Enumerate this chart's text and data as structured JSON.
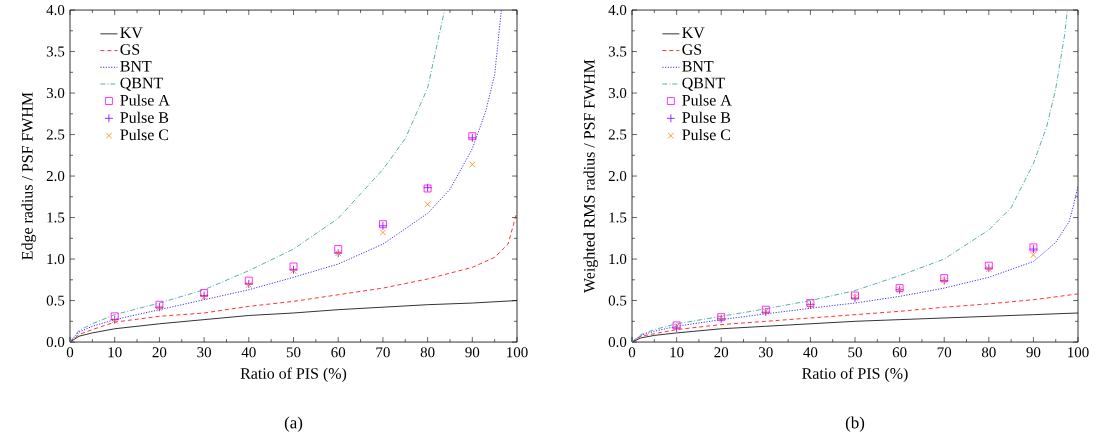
{
  "chart_data": [
    {
      "type": "line",
      "xlabel": "Ratio of PIS (%)",
      "ylabel": "Edge radius / PSF FWHM",
      "annotations": [
        "(a)"
      ],
      "xlim": [
        0,
        100
      ],
      "ylim": [
        0,
        4
      ],
      "xticks": [
        0,
        10,
        20,
        30,
        40,
        50,
        60,
        70,
        80,
        90,
        100
      ],
      "yticks": [
        {
          "value": 0,
          "label": "0.0"
        },
        {
          "value": 0.5,
          "label": "0.5"
        },
        {
          "value": 1,
          "label": "1.0"
        },
        {
          "value": 1.5,
          "label": "1.5"
        },
        {
          "value": 2,
          "label": "2.0"
        },
        {
          "value": 2.5,
          "label": "2.5"
        },
        {
          "value": 3,
          "label": "3.0"
        },
        {
          "value": 3.5,
          "label": "3.5"
        },
        {
          "value": 4,
          "label": "4.0"
        }
      ],
      "grid": false,
      "legend": "top left",
      "series": [
        {
          "name": "KV",
          "color": "#000000",
          "line_style": "solid",
          "marker": "none",
          "x": [
            0,
            2,
            5,
            10,
            20,
            30,
            40,
            50,
            60,
            70,
            80,
            90,
            100
          ],
          "values": [
            0,
            0.07,
            0.11,
            0.16,
            0.22,
            0.27,
            0.32,
            0.35,
            0.39,
            0.42,
            0.45,
            0.47,
            0.5
          ]
        },
        {
          "name": "GS",
          "color": "#ff0000",
          "line_style": "dashed",
          "marker": "none",
          "x": [
            0,
            2,
            5,
            10,
            20,
            30,
            40,
            50,
            60,
            70,
            80,
            90,
            95,
            98,
            100
          ],
          "values": [
            0,
            0.09,
            0.15,
            0.24,
            0.31,
            0.35,
            0.43,
            0.49,
            0.57,
            0.65,
            0.76,
            0.9,
            1.02,
            1.18,
            1.57
          ]
        },
        {
          "name": "BNT",
          "color": "#0000ff",
          "line_style": "dotted",
          "marker": "none",
          "x": [
            0,
            2,
            5,
            10,
            20,
            30,
            40,
            50,
            60,
            70,
            80,
            85,
            90,
            93,
            95,
            96.5
          ],
          "values": [
            0,
            0.12,
            0.19,
            0.27,
            0.39,
            0.51,
            0.63,
            0.78,
            0.94,
            1.18,
            1.55,
            1.84,
            2.33,
            2.78,
            3.22,
            4.0
          ]
        },
        {
          "name": "QBNT",
          "color": "#339999",
          "line_style": "dashdot",
          "marker": "none",
          "x": [
            0,
            2,
            5,
            10,
            20,
            30,
            40,
            50,
            60,
            70,
            75,
            80,
            83.8
          ],
          "values": [
            0,
            0.14,
            0.22,
            0.33,
            0.47,
            0.63,
            0.86,
            1.12,
            1.49,
            2.08,
            2.45,
            3.06,
            4.0
          ]
        },
        {
          "name": "Pulse A",
          "type": "scatter",
          "color": "#ff00ff",
          "marker": "square",
          "x": [
            10,
            20,
            30,
            40,
            50,
            60,
            70,
            80,
            90
          ],
          "values": [
            0.31,
            0.45,
            0.59,
            0.74,
            0.91,
            1.12,
            1.42,
            1.85,
            2.48
          ]
        },
        {
          "name": "Pulse B",
          "type": "scatter",
          "color": "#8000ff",
          "marker": "plus",
          "x": [
            10,
            20,
            30,
            40,
            50,
            60,
            70,
            80,
            90
          ],
          "values": [
            0.27,
            0.42,
            0.56,
            0.7,
            0.87,
            1.07,
            1.4,
            1.86,
            2.46
          ]
        },
        {
          "name": "Pulse C",
          "type": "scatter",
          "color": "#ff8000",
          "marker": "cross",
          "x": [
            10,
            20,
            30,
            40,
            50,
            60,
            70,
            80,
            90
          ],
          "values": [
            0.26,
            0.41,
            0.54,
            0.69,
            0.86,
            1.07,
            1.32,
            1.66,
            2.14
          ]
        }
      ]
    },
    {
      "type": "line",
      "xlabel": "Ratio of PIS (%)",
      "ylabel": "Weighted RMS radius / PSF FWHM",
      "annotations": [
        "(b)"
      ],
      "xlim": [
        0,
        100
      ],
      "ylim": [
        0,
        4
      ],
      "xticks": [
        0,
        10,
        20,
        30,
        40,
        50,
        60,
        70,
        80,
        90,
        100
      ],
      "yticks": [
        {
          "value": 0,
          "label": "0.0"
        },
        {
          "value": 0.5,
          "label": "0.5"
        },
        {
          "value": 1,
          "label": "1.0"
        },
        {
          "value": 1.5,
          "label": "1.5"
        },
        {
          "value": 2,
          "label": "2.0"
        },
        {
          "value": 2.5,
          "label": "2.5"
        },
        {
          "value": 3,
          "label": "3.0"
        },
        {
          "value": 3.5,
          "label": "3.5"
        },
        {
          "value": 4,
          "label": "4.0"
        }
      ],
      "grid": false,
      "legend": "top left",
      "series": [
        {
          "name": "KV",
          "color": "#000000",
          "line_style": "solid",
          "marker": "none",
          "x": [
            0,
            2,
            5,
            10,
            20,
            30,
            40,
            50,
            60,
            70,
            80,
            90,
            100
          ],
          "values": [
            0,
            0.05,
            0.08,
            0.11,
            0.16,
            0.19,
            0.22,
            0.25,
            0.27,
            0.29,
            0.31,
            0.33,
            0.35
          ]
        },
        {
          "name": "GS",
          "color": "#ff0000",
          "line_style": "dashed",
          "marker": "none",
          "x": [
            0,
            2,
            5,
            10,
            20,
            30,
            40,
            50,
            60,
            70,
            80,
            90,
            100
          ],
          "values": [
            0,
            0.07,
            0.1,
            0.15,
            0.21,
            0.25,
            0.29,
            0.33,
            0.37,
            0.42,
            0.46,
            0.51,
            0.58
          ]
        },
        {
          "name": "BNT",
          "color": "#0000ff",
          "line_style": "dotted",
          "marker": "none",
          "x": [
            0,
            2,
            5,
            10,
            20,
            30,
            45,
            50,
            60,
            70,
            80,
            90,
            95,
            98,
            99,
            100
          ],
          "values": [
            0,
            0.08,
            0.13,
            0.19,
            0.27,
            0.34,
            0.44,
            0.47,
            0.55,
            0.65,
            0.78,
            0.97,
            1.2,
            1.45,
            1.65,
            1.88
          ]
        },
        {
          "name": "QBNT",
          "color": "#339999",
          "line_style": "dashdot",
          "marker": "none",
          "x": [
            0,
            2,
            5,
            10,
            20,
            30,
            40,
            50,
            60,
            70,
            80,
            85,
            90,
            93,
            95,
            97,
            97.6
          ],
          "values": [
            0,
            0.09,
            0.15,
            0.22,
            0.31,
            0.4,
            0.5,
            0.62,
            0.8,
            1.0,
            1.35,
            1.62,
            2.15,
            2.6,
            3.05,
            3.7,
            4.0
          ]
        },
        {
          "name": "Pulse A",
          "type": "scatter",
          "color": "#ff00ff",
          "marker": "square",
          "x": [
            10,
            20,
            30,
            40,
            50,
            60,
            70,
            80,
            90
          ],
          "values": [
            0.2,
            0.3,
            0.39,
            0.47,
            0.56,
            0.65,
            0.77,
            0.92,
            1.14
          ]
        },
        {
          "name": "Pulse B",
          "type": "scatter",
          "color": "#8000ff",
          "marker": "plus",
          "x": [
            10,
            20,
            30,
            40,
            50,
            60,
            70,
            80,
            90
          ],
          "values": [
            0.17,
            0.28,
            0.36,
            0.45,
            0.53,
            0.63,
            0.74,
            0.89,
            1.12
          ]
        },
        {
          "name": "Pulse C",
          "type": "scatter",
          "color": "#ff8000",
          "marker": "cross",
          "x": [
            10,
            20,
            30,
            40,
            50,
            60,
            70,
            80,
            90
          ],
          "values": [
            0.19,
            0.29,
            0.37,
            0.44,
            0.54,
            0.63,
            0.74,
            0.88,
            1.05
          ]
        }
      ]
    }
  ]
}
